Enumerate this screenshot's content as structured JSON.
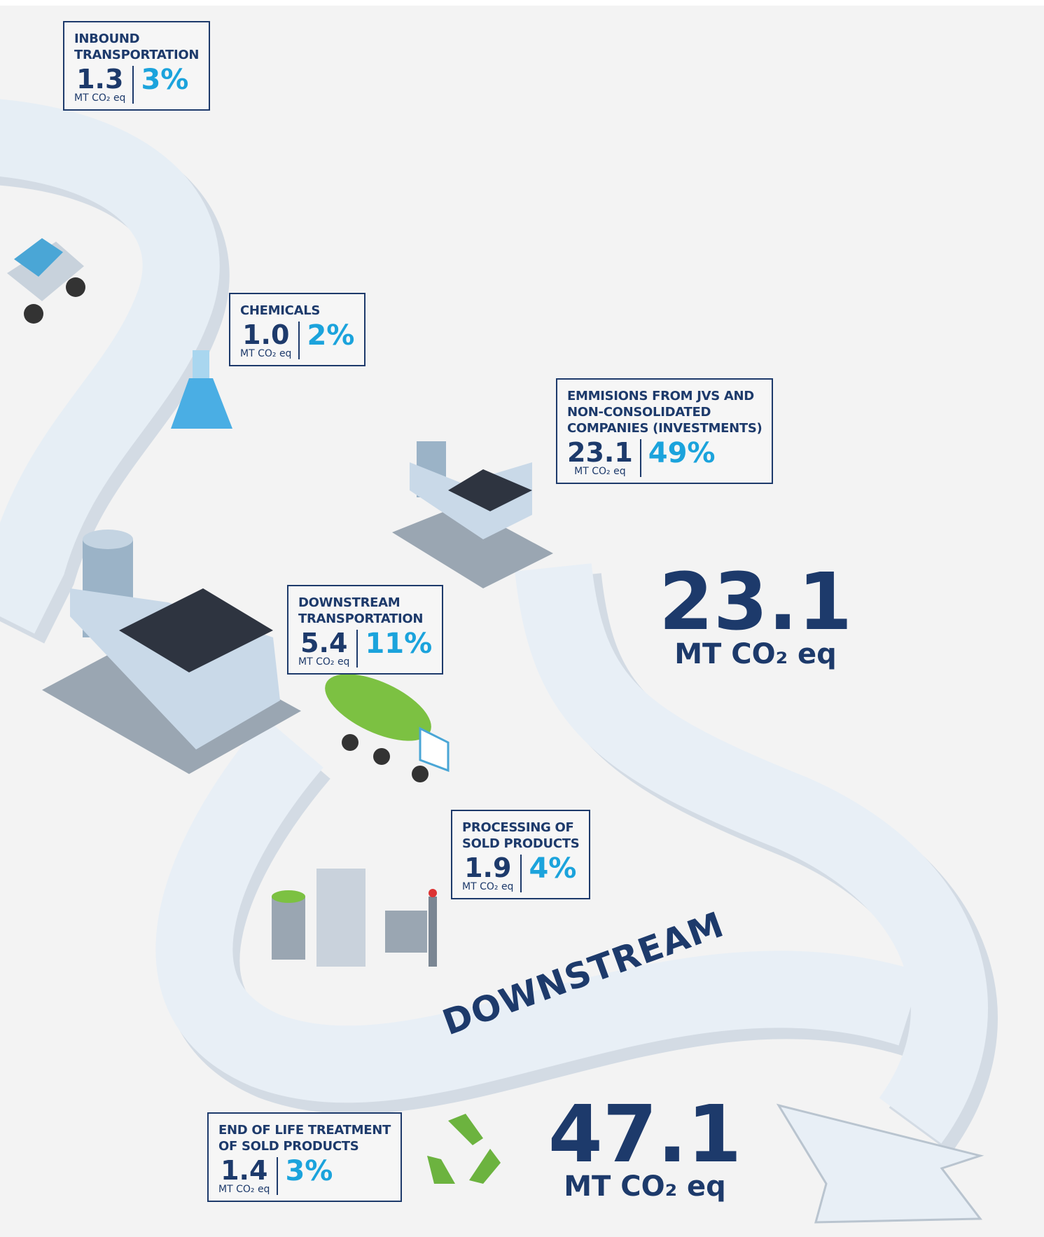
{
  "boxes": [
    {
      "title_lines": [
        "INBOUND",
        "TRANSPORTATION"
      ],
      "value": "1.3",
      "unit": "MT CO₂ eq",
      "percent": "3%"
    },
    {
      "title_lines": [
        "CHEMICALS"
      ],
      "value": "1.0",
      "unit": "MT CO₂ eq",
      "percent": "2%"
    },
    {
      "title_lines": [
        "EMMISIONS FROM JVS AND",
        "NON-CONSOLIDATED",
        "COMPANIES (INVESTMENTS)"
      ],
      "value": "23.1",
      "unit": "MT CO₂ eq",
      "percent": "49%"
    },
    {
      "title_lines": [
        "DOWNSTREAM",
        "TRANSPORTATION"
      ],
      "value": "5.4",
      "unit": "MT CO₂ eq",
      "percent": "11%"
    },
    {
      "title_lines": [
        "PROCESSING OF",
        "SOLD PRODUCTS"
      ],
      "value": "1.9",
      "unit": "MT CO₂ eq",
      "percent": "4%"
    },
    {
      "title_lines": [
        "END OF LIFE TREATMENT",
        "OF SOLD PRODUCTS"
      ],
      "value": "1.4",
      "unit": "MT CO₂ eq",
      "percent": "3%"
    }
  ],
  "totals": [
    {
      "value": "23.1",
      "unit": "MT CO₂ eq"
    },
    {
      "value": "47.1",
      "unit": "MT CO₂ eq"
    }
  ],
  "river_label": "DOWNSTREAM"
}
